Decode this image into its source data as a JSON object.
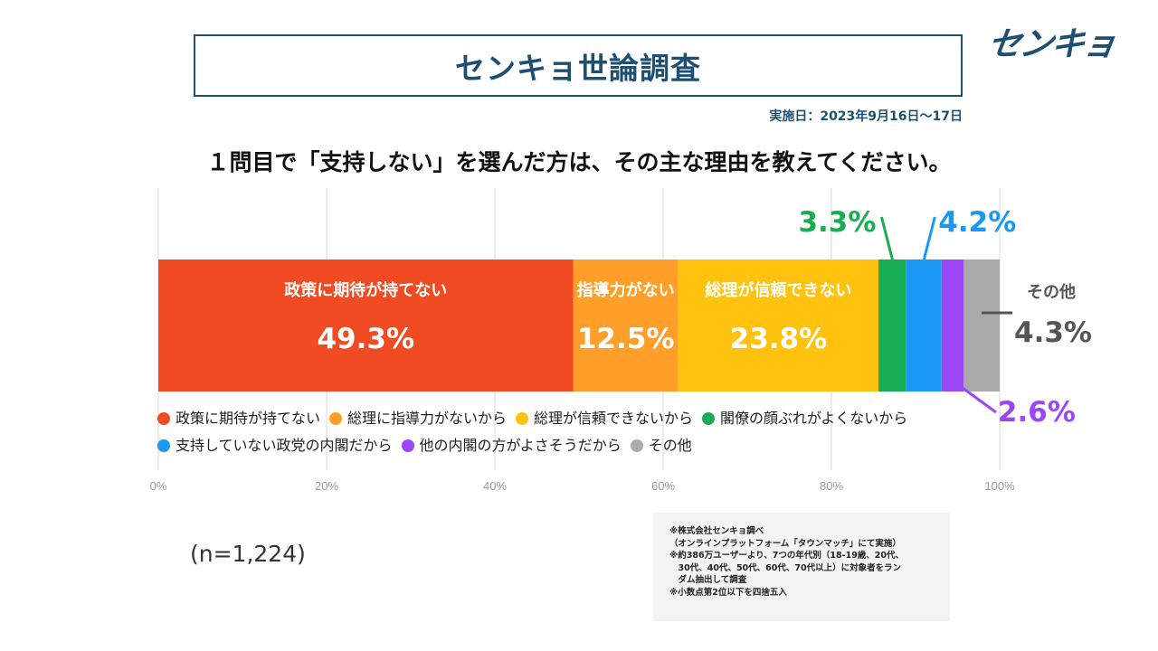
{
  "header": {
    "title": "センキョ世論調査",
    "logo_text": "センキョ",
    "date": "実施日：2023年9月16日〜17日"
  },
  "question": "１問目で「支持しない」を選んだ方は、その主な理由を教えてください。",
  "chart_data": {
    "type": "bar",
    "orientation": "horizontal-stacked-100",
    "categories": [
      "政策に期待が持てない",
      "総理に指導力がないから",
      "総理が信頼できないから",
      "閣僚の顔ぶれがよくないから",
      "支持していない政党の内閣だから",
      "他の内閣の方がよさそうだから",
      "その他"
    ],
    "values": [
      49.3,
      12.5,
      23.8,
      3.3,
      4.2,
      2.6,
      4.3
    ],
    "value_labels": [
      "49.3%",
      "12.5%",
      "23.8%",
      "3.3%",
      "4.2%",
      "2.6%",
      "4.3%"
    ],
    "segment_titles": [
      "政策に期待が持てない",
      "指導力がない",
      "総理が信頼できない",
      "",
      "",
      "",
      "その他"
    ],
    "colors": [
      "#f04b23",
      "#ff9f2a",
      "#ffc20e",
      "#18ad54",
      "#1b98f5",
      "#9b46f7",
      "#aaaaaa"
    ],
    "xlim": [
      0,
      100
    ],
    "xticks": [
      "0%",
      "20%",
      "40%",
      "60%",
      "80%",
      "100%"
    ],
    "grid": true
  },
  "legend": {
    "rows": [
      [
        {
          "label": "政策に期待が持てない",
          "color": "#f04b23"
        },
        {
          "label": "総理に指導力がないから",
          "color": "#ff9f2a"
        },
        {
          "label": "総理が信頼できないから",
          "color": "#ffc20e"
        },
        {
          "label": "閣僚の顔ぶれがよくないから",
          "color": "#18ad54"
        }
      ],
      [
        {
          "label": "支持していない政党の内閣だから",
          "color": "#1b98f5"
        },
        {
          "label": "他の内閣の方がよさそうだから",
          "color": "#9b46f7"
        },
        {
          "label": "その他",
          "color": "#aaaaaa"
        }
      ]
    ]
  },
  "sample_size": "(n=1,224)",
  "notes": [
    "※株式会社センキョ調べ",
    "（オンラインプラットフォーム「タウンマッチ」にて実施）",
    "※約386万ユーザーより、7つの年代別（18-19歳、20代、",
    "　30代、40代、50代、60代、70代以上）に対象者をラン",
    "　ダム抽出して調査",
    "※小数点第2位以下を四捨五入"
  ]
}
